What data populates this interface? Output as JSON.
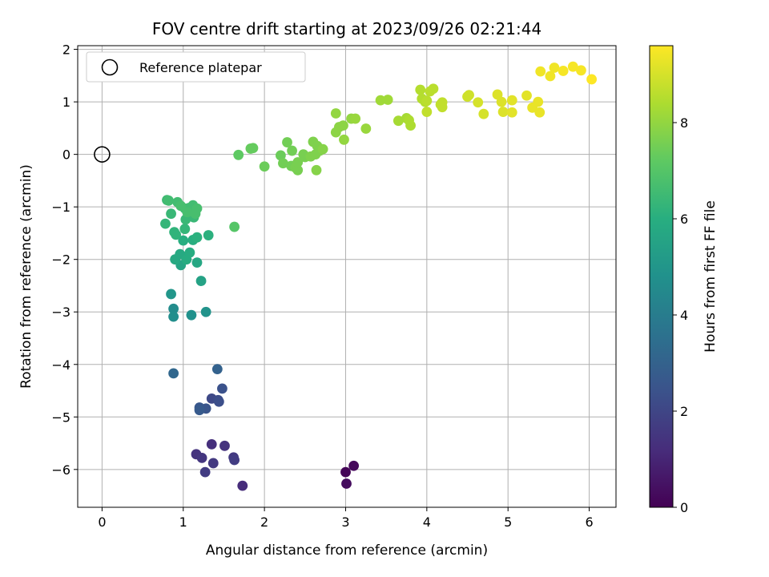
{
  "chart_data": {
    "type": "scatter",
    "title": "FOV centre drift starting at 2023/09/26 02:21:44",
    "xlabel": "Angular distance from reference (arcmin)",
    "ylabel": "Rotation from reference (arcmin)",
    "xlim": [
      -0.3,
      6.33
    ],
    "ylim": [
      -6.72,
      2.07
    ],
    "xticks": [
      0,
      1,
      2,
      3,
      4,
      5,
      6
    ],
    "yticks": [
      -6,
      -5,
      -4,
      -3,
      -2,
      -1,
      0,
      1,
      2
    ],
    "grid": true,
    "legend": {
      "placement": "top-left",
      "entries": [
        "Reference platepar"
      ]
    },
    "reference_point": [
      0,
      0
    ],
    "colorbar": {
      "label": "Hours from first FF file",
      "colormap": "viridis",
      "range": [
        0,
        9.6
      ],
      "ticks": [
        0,
        2,
        4,
        6,
        8
      ]
    },
    "points": [
      [
        3.0,
        -6.05,
        0.1
      ],
      [
        3.1,
        -5.93,
        0.2
      ],
      [
        3.01,
        -6.27,
        0.3
      ],
      [
        1.73,
        -6.31,
        1.2
      ],
      [
        1.35,
        -5.52,
        1.3
      ],
      [
        1.51,
        -5.55,
        1.4
      ],
      [
        1.16,
        -5.71,
        1.4
      ],
      [
        1.23,
        -5.78,
        1.5
      ],
      [
        1.37,
        -5.88,
        1.6
      ],
      [
        1.62,
        -5.77,
        1.6
      ],
      [
        1.63,
        -5.82,
        1.7
      ],
      [
        1.27,
        -6.05,
        1.7
      ],
      [
        1.35,
        -4.65,
        2.1
      ],
      [
        1.43,
        -4.68,
        2.2
      ],
      [
        1.44,
        -4.71,
        2.3
      ],
      [
        1.48,
        -4.46,
        2.4
      ],
      [
        1.28,
        -4.84,
        2.5
      ],
      [
        1.2,
        -4.82,
        2.6
      ],
      [
        1.2,
        -4.87,
        2.7
      ],
      [
        1.42,
        -4.09,
        3.0
      ],
      [
        0.88,
        -4.17,
        3.2
      ],
      [
        0.88,
        -2.94,
        4.6
      ],
      [
        0.88,
        -3.09,
        4.7
      ],
      [
        1.1,
        -3.06,
        4.8
      ],
      [
        1.28,
        -3.0,
        4.9
      ],
      [
        0.85,
        -2.66,
        5.0
      ],
      [
        1.22,
        -2.41,
        5.5
      ],
      [
        0.97,
        -2.11,
        5.6
      ],
      [
        1.17,
        -2.06,
        5.7
      ],
      [
        0.9,
        -2.0,
        5.8
      ],
      [
        0.96,
        -1.9,
        5.8
      ],
      [
        1.04,
        -2.0,
        5.9
      ],
      [
        1.08,
        -1.87,
        5.9
      ],
      [
        1.0,
        -1.64,
        6.0
      ],
      [
        1.12,
        -1.63,
        6.0
      ],
      [
        1.17,
        -1.58,
        6.1
      ],
      [
        1.31,
        -1.54,
        6.1
      ],
      [
        0.89,
        -1.48,
        6.2
      ],
      [
        0.91,
        -1.53,
        6.2
      ],
      [
        1.02,
        -1.42,
        6.3
      ],
      [
        0.78,
        -1.32,
        6.3
      ],
      [
        1.03,
        -1.24,
        6.4
      ],
      [
        1.13,
        -1.2,
        6.4
      ],
      [
        0.85,
        -1.13,
        6.4
      ],
      [
        1.02,
        -1.03,
        6.5
      ],
      [
        1.13,
        -1.05,
        6.5
      ],
      [
        0.8,
        -0.87,
        6.5
      ],
      [
        0.82,
        -0.88,
        6.6
      ],
      [
        0.93,
        -0.91,
        6.6
      ],
      [
        1.07,
        -1.02,
        6.6
      ],
      [
        1.12,
        -0.97,
        6.6
      ],
      [
        1.17,
        -1.03,
        6.7
      ],
      [
        1.05,
        -1.1,
        6.7
      ],
      [
        1.15,
        -1.13,
        6.7
      ],
      [
        0.97,
        -0.98,
        6.7
      ],
      [
        1.63,
        -1.38,
        7.0
      ],
      [
        1.68,
        -0.01,
        7.2
      ],
      [
        1.83,
        0.11,
        7.3
      ],
      [
        1.86,
        0.12,
        7.3
      ],
      [
        2.0,
        -0.23,
        7.4
      ],
      [
        2.2,
        -0.02,
        7.4
      ],
      [
        2.28,
        0.23,
        7.5
      ],
      [
        2.34,
        0.07,
        7.5
      ],
      [
        2.23,
        -0.17,
        7.5
      ],
      [
        2.33,
        -0.22,
        7.5
      ],
      [
        2.38,
        -0.25,
        7.6
      ],
      [
        2.41,
        -0.3,
        7.6
      ],
      [
        2.41,
        -0.15,
        7.6
      ],
      [
        2.48,
        0.0,
        7.6
      ],
      [
        2.5,
        -0.05,
        7.6
      ],
      [
        2.57,
        -0.04,
        7.7
      ],
      [
        2.6,
        0.24,
        7.7
      ],
      [
        2.65,
        0.16,
        7.7
      ],
      [
        2.63,
        0.0,
        7.7
      ],
      [
        2.68,
        0.07,
        7.7
      ],
      [
        2.72,
        0.1,
        7.8
      ],
      [
        2.64,
        -0.3,
        7.8
      ],
      [
        2.88,
        0.42,
        7.9
      ],
      [
        2.92,
        0.52,
        7.9
      ],
      [
        2.97,
        0.55,
        7.9
      ],
      [
        2.98,
        0.28,
        8.0
      ],
      [
        2.88,
        0.78,
        8.0
      ],
      [
        3.07,
        0.68,
        8.0
      ],
      [
        3.12,
        0.68,
        8.1
      ],
      [
        3.25,
        0.49,
        8.1
      ],
      [
        3.43,
        1.03,
        8.2
      ],
      [
        3.52,
        1.04,
        8.2
      ],
      [
        3.65,
        0.64,
        8.3
      ],
      [
        3.75,
        0.69,
        8.3
      ],
      [
        3.8,
        0.55,
        8.4
      ],
      [
        3.78,
        0.65,
        8.4
      ],
      [
        3.92,
        1.23,
        8.5
      ],
      [
        3.94,
        1.06,
        8.5
      ],
      [
        3.98,
        1.0,
        8.5
      ],
      [
        4.0,
        1.02,
        8.6
      ],
      [
        4.04,
        1.2,
        8.6
      ],
      [
        4.08,
        1.25,
        8.6
      ],
      [
        4.0,
        0.81,
        8.7
      ],
      [
        4.17,
        0.95,
        8.7
      ],
      [
        4.19,
        0.99,
        8.7
      ],
      [
        4.19,
        0.9,
        8.7
      ],
      [
        4.5,
        1.1,
        8.9
      ],
      [
        4.52,
        1.13,
        8.9
      ],
      [
        4.63,
        0.99,
        9.0
      ],
      [
        4.7,
        0.77,
        9.0
      ],
      [
        4.87,
        1.14,
        9.1
      ],
      [
        4.92,
        1.0,
        9.1
      ],
      [
        4.94,
        0.81,
        9.1
      ],
      [
        5.05,
        1.03,
        9.2
      ],
      [
        5.05,
        0.8,
        9.2
      ],
      [
        5.23,
        1.12,
        9.2
      ],
      [
        5.3,
        0.89,
        9.3
      ],
      [
        5.37,
        1.0,
        9.3
      ],
      [
        5.39,
        0.8,
        9.3
      ],
      [
        5.4,
        1.58,
        9.4
      ],
      [
        5.52,
        1.49,
        9.4
      ],
      [
        5.57,
        1.65,
        9.4
      ],
      [
        5.68,
        1.59,
        9.5
      ],
      [
        5.8,
        1.67,
        9.5
      ],
      [
        5.9,
        1.6,
        9.5
      ],
      [
        6.03,
        1.43,
        9.6
      ]
    ]
  }
}
